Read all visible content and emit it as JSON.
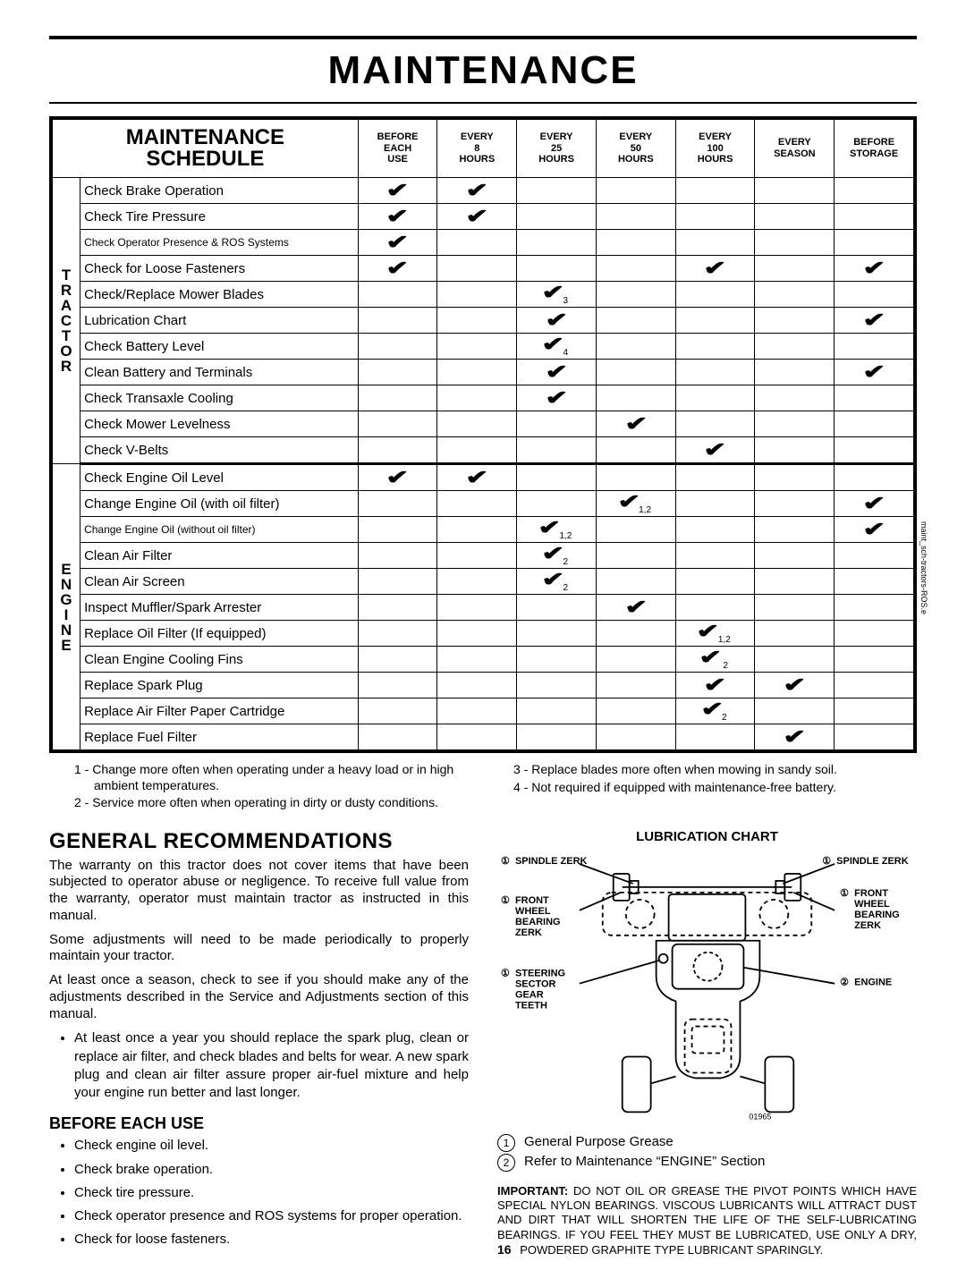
{
  "page": {
    "title": "MAINTENANCE",
    "page_number": "16",
    "side_code": "maint_sch-tractors-ROS.e"
  },
  "schedule": {
    "header_title_l1": "MAINTENANCE",
    "header_title_l2": "SCHEDULE",
    "columns": [
      "BEFORE\nEACH\nUSE",
      "EVERY\n8\nHOURS",
      "EVERY\n25\nHOURS",
      "EVERY\n50\nHOURS",
      "EVERY\n100\nHOURS",
      "EVERY\nSEASON",
      "BEFORE\nSTORAGE"
    ],
    "groups": [
      {
        "label": "TRACTOR",
        "rows": [
          {
            "task": "Check Brake Operation",
            "marks": [
              "✔",
              "✔",
              "",
              "",
              "",
              "",
              ""
            ]
          },
          {
            "task": "Check Tire Pressure",
            "marks": [
              "✔",
              "✔",
              "",
              "",
              "",
              "",
              ""
            ]
          },
          {
            "task": "Check Operator Presence & ROS Systems",
            "marks": [
              "✔",
              "",
              "",
              "",
              "",
              "",
              ""
            ],
            "small": true
          },
          {
            "task": "Check for Loose Fasteners",
            "marks": [
              "✔",
              "",
              "",
              "",
              "✔",
              "",
              "✔"
            ]
          },
          {
            "task": "Check/Replace Mower Blades",
            "marks": [
              "",
              "",
              "✔₃",
              "",
              "",
              "",
              ""
            ]
          },
          {
            "task": "Lubrication Chart",
            "marks": [
              "",
              "",
              "✔",
              "",
              "",
              "",
              "✔"
            ]
          },
          {
            "task": "Check Battery Level",
            "marks": [
              "",
              "",
              "✔₄",
              "",
              "",
              "",
              ""
            ]
          },
          {
            "task": "Clean Battery and Terminals",
            "marks": [
              "",
              "",
              "✔",
              "",
              "",
              "",
              "✔"
            ]
          },
          {
            "task": "Check Transaxle Cooling",
            "marks": [
              "",
              "",
              "✔",
              "",
              "",
              "",
              ""
            ]
          },
          {
            "task": "Check Mower Levelness",
            "marks": [
              "",
              "",
              "",
              "✔",
              "",
              "",
              ""
            ]
          },
          {
            "task": "Check V-Belts",
            "marks": [
              "",
              "",
              "",
              "",
              "✔",
              "",
              ""
            ]
          }
        ]
      },
      {
        "label": "ENGINE",
        "rows": [
          {
            "task": "Check Engine Oil Level",
            "marks": [
              "✔",
              "✔",
              "",
              "",
              "",
              "",
              ""
            ]
          },
          {
            "task": "Change Engine Oil (with oil filter)",
            "marks": [
              "",
              "",
              "",
              "✔₁,₂",
              "",
              "",
              "✔"
            ]
          },
          {
            "task": "Change Engine Oil (without oil filter)",
            "marks": [
              "",
              "",
              "✔₁,₂",
              "",
              "",
              "",
              "✔"
            ],
            "small": true
          },
          {
            "task": "Clean Air Filter",
            "marks": [
              "",
              "",
              "✔₂",
              "",
              "",
              "",
              ""
            ]
          },
          {
            "task": "Clean Air Screen",
            "marks": [
              "",
              "",
              "✔₂",
              "",
              "",
              "",
              ""
            ]
          },
          {
            "task": "Inspect Muffler/Spark Arrester",
            "marks": [
              "",
              "",
              "",
              "✔",
              "",
              "",
              ""
            ]
          },
          {
            "task": "Replace Oil Filter (If equipped)",
            "marks": [
              "",
              "",
              "",
              "",
              "✔₁,₂",
              "",
              ""
            ]
          },
          {
            "task": "Clean Engine Cooling Fins",
            "marks": [
              "",
              "",
              "",
              "",
              "✔ ₂",
              "",
              ""
            ]
          },
          {
            "task": "Replace Spark Plug",
            "marks": [
              "",
              "",
              "",
              "",
              "✔",
              "✔",
              ""
            ]
          },
          {
            "task": "Replace Air Filter Paper Cartridge",
            "marks": [
              "",
              "",
              "",
              "",
              "✔₂",
              "",
              ""
            ]
          },
          {
            "task": "Replace Fuel Filter",
            "marks": [
              "",
              "",
              "",
              "",
              "",
              "✔",
              ""
            ]
          }
        ]
      }
    ],
    "footnotes_left": [
      "1 - Change more often when operating under a heavy load or in high ambient temperatures.",
      "2 - Service more often when operating in dirty or dusty conditions."
    ],
    "footnotes_right": [
      "3 - Replace blades more often when mowing in sandy soil.",
      "4 - Not required if equipped with maintenance-free battery."
    ]
  },
  "general": {
    "heading": "GENERAL RECOMMENDATIONS",
    "p1": "The warranty on this tractor does not cover items that have been subjected to operator abuse or negligence.  To receive full value from the warranty, operator must maintain tractor as instructed in this manual.",
    "p2": "Some adjustments will need to be made periodically to properly maintain your tractor.",
    "p3": "At least once a season, check to see if you should make any of the adjustments described in the Service and Adjustments section of this manual.",
    "bullet1": "At least once a year you should replace the spark plug, clean or replace air filter, and check blades and belts for wear.  A new spark plug and clean air filter assure proper air-fuel mixture and help your engine run better and last longer.",
    "before_heading": "BEFORE EACH USE",
    "before_items": [
      "Check engine oil level.",
      "Check brake operation.",
      "Check tire pressure.",
      "Check operator presence and ROS systems for proper operation.",
      "Check for loose fasteners."
    ]
  },
  "lubrication": {
    "title": "LUBRICATION CHART",
    "labels": {
      "spindle": "SPINDLE ZERK",
      "front_wheel": "FRONT\nWHEEL\nBEARING\nZERK",
      "steering": "STEERING\nSECTOR\nGEAR\nTEETH",
      "engine": "ENGINE",
      "figno": "01965"
    },
    "legend": [
      {
        "n": "①",
        "text": "General Purpose Grease"
      },
      {
        "n": "②",
        "text": "Refer to Maintenance “ENGINE” Section"
      }
    ],
    "important_label": "IMPORTANT:",
    "important_text": "  DO NOT OIL OR GREASE THE PIVOT POINTS WHICH HAVE SPECIAL NYLON BEARINGS.  VISCOUS LUBRICANTS WILL ATTRACT DUST AND DIRT THAT WILL SHORTEN THE LIFE OF THE SELF-LUBRICATING BEARINGS.  IF YOU FEEL THEY MUST BE LUBRICATED, USE ONLY A DRY, POWDERED GRAPHITE TYPE LUBRICANT SPARINGLY."
  }
}
